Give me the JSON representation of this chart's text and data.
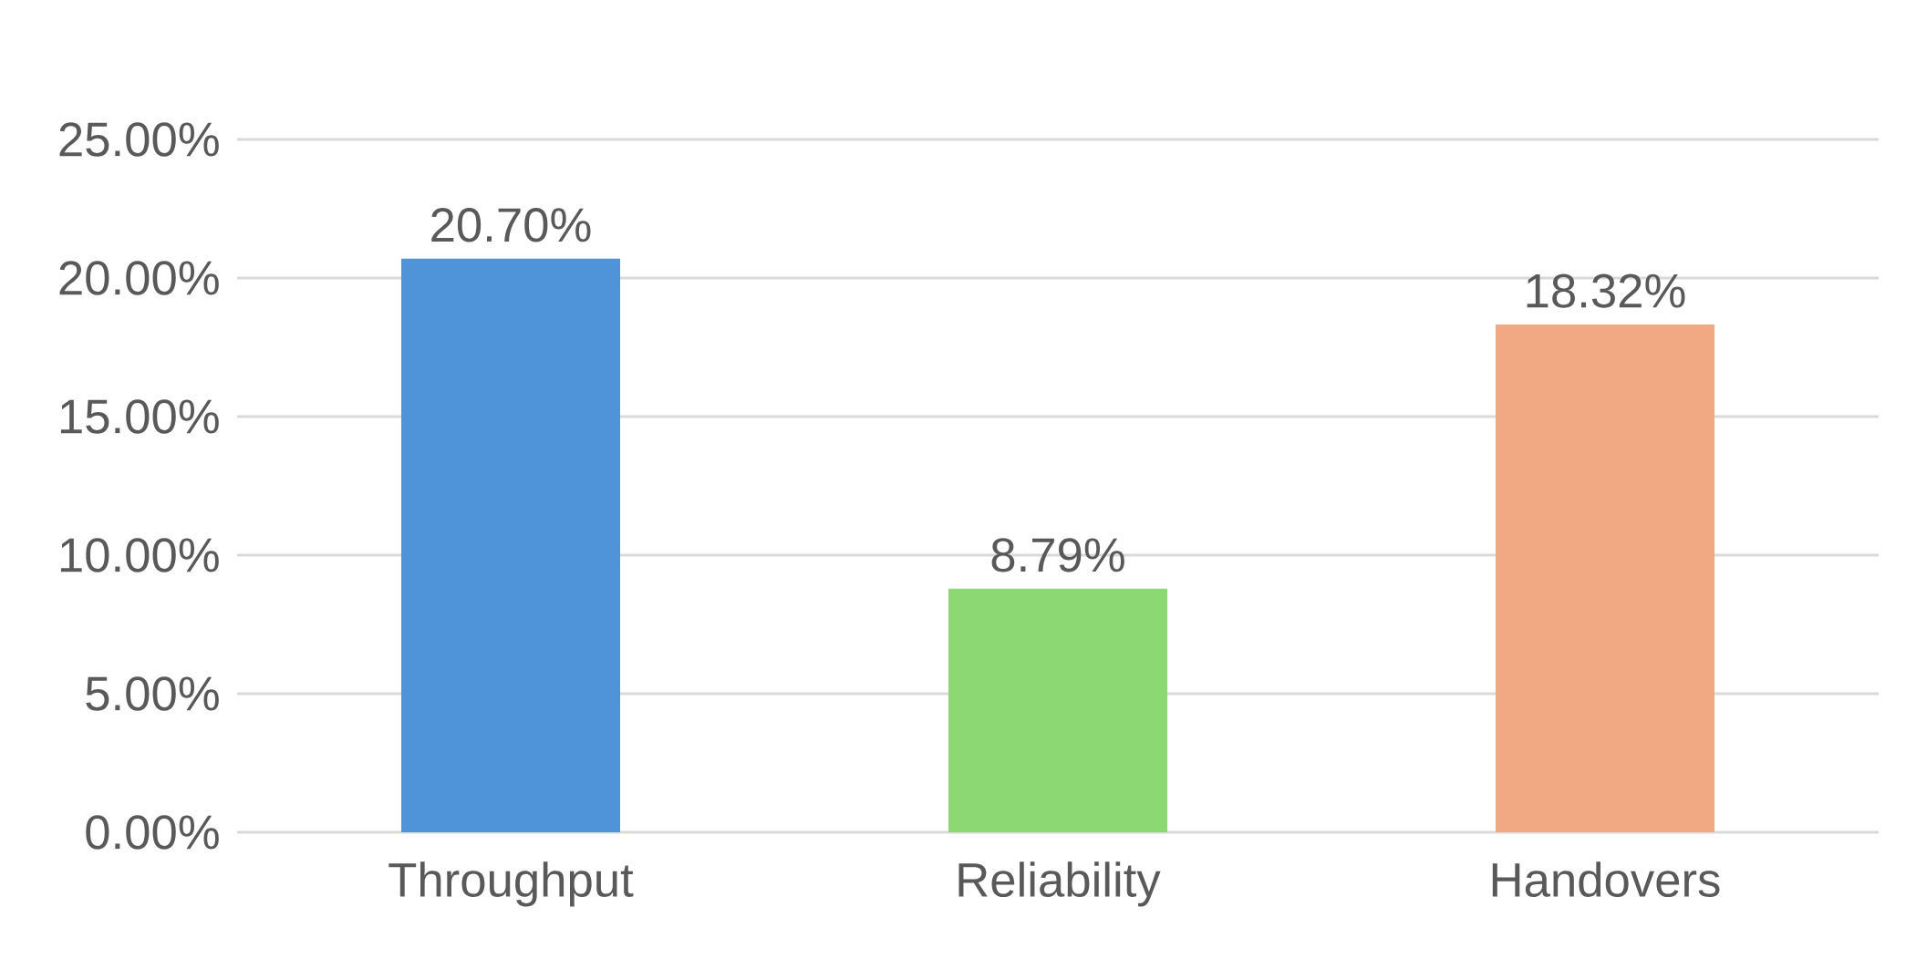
{
  "chart_data": {
    "type": "bar",
    "categories": [
      "Throughput",
      "Reliability",
      "Handovers"
    ],
    "values": [
      20.7,
      8.79,
      18.32
    ],
    "colors": [
      "#4f94d9",
      "#8cd872",
      "#f0a982"
    ],
    "value_labels": [
      "20.70%",
      "8.79%",
      "18.32%"
    ],
    "ylim": [
      0,
      25
    ],
    "yticks": [
      {
        "value": 0,
        "label": "0.00%"
      },
      {
        "value": 5,
        "label": "5.00%"
      },
      {
        "value": 10,
        "label": "10.00%"
      },
      {
        "value": 15,
        "label": "15.00%"
      },
      {
        "value": 20,
        "label": "20.00%"
      },
      {
        "value": 25,
        "label": "25.00%"
      }
    ],
    "grid": "y"
  }
}
